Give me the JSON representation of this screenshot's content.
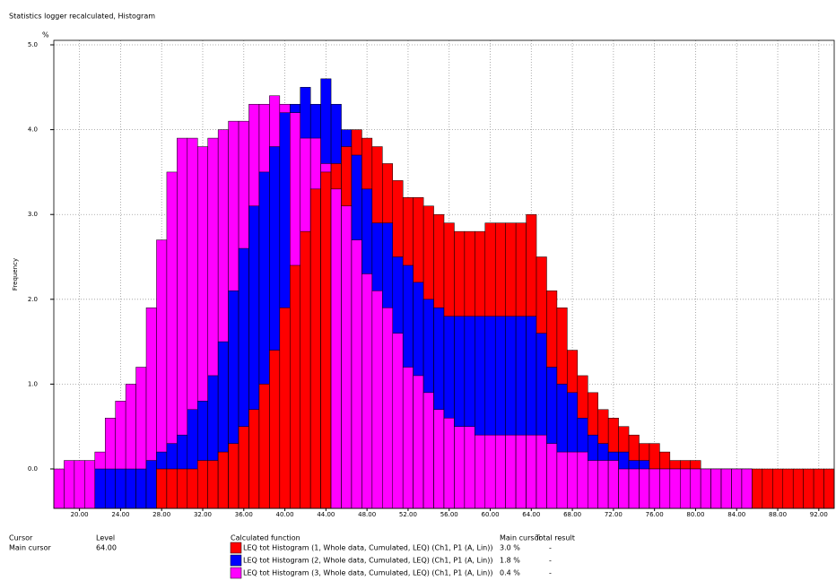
{
  "chart_data": {
    "type": "histogram",
    "title": "Statistics logger recalculated, Histogram",
    "y_unit": "%",
    "y_label": "Frequency",
    "bins": [
      17.5,
      18.5,
      19.5,
      20.5,
      21.5,
      22.5,
      23.5,
      24.5,
      25.5,
      26.5,
      27.5,
      28.5,
      29.5,
      30.5,
      31.5,
      32.5,
      33.5,
      34.5,
      35.5,
      36.5,
      37.5,
      38.5,
      39.5,
      40.5,
      41.5,
      42.5,
      43.5,
      44.5,
      45.5,
      46.5,
      47.5,
      48.5,
      49.5,
      50.5,
      51.5,
      52.5,
      53.5,
      54.5,
      55.5,
      56.5,
      57.5,
      58.5,
      59.5,
      60.5,
      61.5,
      62.5,
      63.5,
      64.5,
      65.5,
      66.5,
      67.5,
      68.5,
      69.5,
      70.5,
      71.5,
      72.5,
      73.5,
      74.5,
      75.5,
      76.5,
      77.5,
      78.5,
      79.5,
      80.5,
      81.5,
      82.5,
      83.5,
      84.5,
      85.5,
      86.5,
      87.5,
      88.5,
      89.5,
      90.5,
      91.5,
      92.5,
      93.5
    ],
    "series": [
      {
        "name": "LEQ tot Histogram (1, Whole data, Cumulated, LEQ) (Ch1, P1 (A, Lin))",
        "color": "#ff0000",
        "values": [
          null,
          null,
          null,
          null,
          null,
          null,
          null,
          null,
          null,
          null,
          0,
          0,
          0,
          0,
          0.1,
          0.1,
          0.2,
          0.3,
          0.5,
          0.7,
          1.0,
          1.4,
          1.9,
          2.4,
          2.8,
          3.3,
          3.5,
          3.6,
          3.8,
          4.0,
          3.9,
          3.8,
          3.6,
          3.4,
          3.2,
          3.2,
          3.1,
          3.0,
          2.9,
          2.8,
          2.8,
          2.8,
          2.9,
          2.9,
          2.9,
          2.9,
          3.0,
          2.5,
          2.1,
          1.9,
          1.4,
          1.1,
          0.9,
          0.7,
          0.6,
          0.5,
          0.4,
          0.3,
          0.3,
          0.2,
          0.1,
          0.1,
          0.1,
          0,
          0,
          0,
          0,
          0,
          0,
          0,
          0,
          0,
          0,
          0,
          0,
          0
        ]
      },
      {
        "name": "LEQ tot Histogram (2, Whole data, Cumulated, LEQ) (Ch1, P1 (A, Lin))",
        "color": "#0000ff",
        "values": [
          null,
          null,
          null,
          null,
          0,
          0,
          0,
          0,
          0,
          0.1,
          0.2,
          0.3,
          0.4,
          0.7,
          0.8,
          1.1,
          1.5,
          2.1,
          2.6,
          3.1,
          3.5,
          3.8,
          4.2,
          4.3,
          4.5,
          4.3,
          4.6,
          4.3,
          4.0,
          3.7,
          3.3,
          2.9,
          2.9,
          2.5,
          2.4,
          2.2,
          2.0,
          1.9,
          1.8,
          1.8,
          1.8,
          1.8,
          1.8,
          1.8,
          1.8,
          1.8,
          1.8,
          1.6,
          1.2,
          1.0,
          0.9,
          0.6,
          0.4,
          0.3,
          0.2,
          0.2,
          0.1,
          0.1,
          0,
          0,
          0,
          0,
          0,
          0,
          0,
          0,
          0,
          0,
          null,
          null,
          null,
          null,
          null,
          null,
          null,
          null
        ]
      },
      {
        "name": "LEQ tot Histogram (3, Whole data, Cumulated, LEQ) (Ch1, P1 (A, Lin))",
        "color": "#ff00ff",
        "values": [
          0,
          0.1,
          0.1,
          0.1,
          0.2,
          0.6,
          0.8,
          1.0,
          1.2,
          1.9,
          2.7,
          3.5,
          3.9,
          3.9,
          3.8,
          3.9,
          4.0,
          4.1,
          4.1,
          4.3,
          4.3,
          4.4,
          4.3,
          4.2,
          3.9,
          3.9,
          3.6,
          3.3,
          3.1,
          2.7,
          2.3,
          2.1,
          1.9,
          1.6,
          1.2,
          1.1,
          0.9,
          0.7,
          0.6,
          0.5,
          0.5,
          0.4,
          0.4,
          0.4,
          0.4,
          0.4,
          0.4,
          0.4,
          0.3,
          0.2,
          0.2,
          0.2,
          0.1,
          0.1,
          0.1,
          0,
          0,
          0,
          0,
          0,
          0,
          0,
          0,
          0,
          0,
          0,
          0,
          0,
          null,
          null,
          null,
          null,
          null,
          null,
          null,
          null
        ]
      }
    ],
    "xlim": [
      17.5,
      93.5
    ],
    "xticks": [
      {
        "value": 20,
        "label": "20.00"
      },
      {
        "value": 24,
        "label": "24.00"
      },
      {
        "value": 28,
        "label": "28.00"
      },
      {
        "value": 32,
        "label": "32.00"
      },
      {
        "value": 36,
        "label": "36.00"
      },
      {
        "value": 40,
        "label": "40.00"
      },
      {
        "value": 44,
        "label": "44.00"
      },
      {
        "value": 48,
        "label": "48.00"
      },
      {
        "value": 52,
        "label": "52.00"
      },
      {
        "value": 56,
        "label": "56.00"
      },
      {
        "value": 60,
        "label": "60.00"
      },
      {
        "value": 64,
        "label": "64.00"
      },
      {
        "value": 68,
        "label": "68.00"
      },
      {
        "value": 72,
        "label": "72.00"
      },
      {
        "value": 76,
        "label": "76.00"
      },
      {
        "value": 80,
        "label": "80.00"
      },
      {
        "value": 84,
        "label": "84.00"
      },
      {
        "value": 88,
        "label": "88.00"
      },
      {
        "value": 92,
        "label": "92.00"
      }
    ],
    "ylim": [
      -0.465,
      5.053
    ],
    "yticks": [
      {
        "value": 0,
        "label": "0.0"
      },
      {
        "value": 1,
        "label": "1.0"
      },
      {
        "value": 2,
        "label": "2.0"
      },
      {
        "value": 3,
        "label": "3.0"
      },
      {
        "value": 4,
        "label": "4.0"
      },
      {
        "value": 5,
        "label": "5.0"
      }
    ],
    "grid": true
  },
  "cursor_panel": {
    "cursor_header": "Cursor",
    "cursor_name": "Main cursor",
    "level_header": "Level",
    "level_value": "64.00",
    "function_header": "Calculated function",
    "main_header": "Main cursor",
    "main_values": [
      "3.0 %",
      "1.8 %",
      "0.4 %"
    ],
    "total_header": "Total result",
    "total_values": [
      "-",
      "-",
      "-"
    ]
  }
}
